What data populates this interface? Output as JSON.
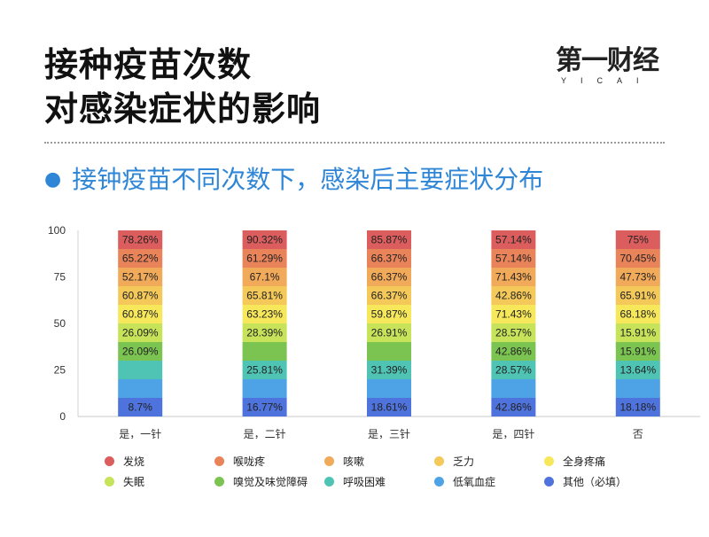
{
  "title": {
    "line1": "接种疫苗次数",
    "line2": "对感染症状的影响"
  },
  "logo": {
    "cn": "第一财经",
    "en": "YICAI"
  },
  "subtitle": "接钟疫苗不同次数下，感染后主要症状分布",
  "chart_data": {
    "type": "bar",
    "stacked": true,
    "categories": [
      "是，一针",
      "是，二针",
      "是，三针",
      "是，四针",
      "否"
    ],
    "ylim": [
      0,
      100
    ],
    "yticks": [
      0,
      25,
      50,
      75,
      100
    ],
    "legend_position": "bottom",
    "series": [
      {
        "name": "其他（必填）",
        "color": "#4f73dc",
        "labels": [
          "8.7%",
          "16.77%",
          "18.61%",
          "42.86%",
          "18.18%"
        ]
      },
      {
        "name": "低氧血症",
        "color": "#4ea3e6",
        "labels": [
          "",
          "",
          "",
          "",
          ""
        ]
      },
      {
        "name": "呼吸困难",
        "color": "#4fc4b4",
        "labels": [
          "",
          "25.81%",
          "31.39%",
          "28.57%",
          "13.64%"
        ]
      },
      {
        "name": "嗅觉及味觉障碍",
        "color": "#7bc452",
        "labels": [
          "26.09%",
          "",
          "",
          "42.86%",
          "15.91%"
        ]
      },
      {
        "name": "失眠",
        "color": "#c6e35a",
        "labels": [
          "26.09%",
          "28.39%",
          "26.91%",
          "28.57%",
          "15.91%"
        ]
      },
      {
        "name": "全身疼痛",
        "color": "#f6e85a",
        "labels": [
          "60.87%",
          "63.23%",
          "59.87%",
          "71.43%",
          "68.18%"
        ]
      },
      {
        "name": "乏力",
        "color": "#f4c95a",
        "labels": [
          "60.87%",
          "65.81%",
          "66.37%",
          "42.86%",
          "65.91%"
        ]
      },
      {
        "name": "咳嗽",
        "color": "#f1a95a",
        "labels": [
          "52.17%",
          "67.1%",
          "66.37%",
          "71.43%",
          "47.73%"
        ]
      },
      {
        "name": "喉咙疼",
        "color": "#e9835a",
        "labels": [
          "65.22%",
          "61.29%",
          "66.37%",
          "57.14%",
          "70.45%"
        ]
      },
      {
        "name": "发烧",
        "color": "#dc5d5d",
        "labels": [
          "78.26%",
          "90.32%",
          "85.87%",
          "57.14%",
          "75%"
        ]
      }
    ]
  },
  "legend": [
    {
      "label": "发烧",
      "color": "#dc5d5d"
    },
    {
      "label": "喉咙疼",
      "color": "#e9835a"
    },
    {
      "label": "咳嗽",
      "color": "#f1a95a"
    },
    {
      "label": "乏力",
      "color": "#f4c95a"
    },
    {
      "label": "全身疼痛",
      "color": "#f6e85a"
    },
    {
      "label": "失眠",
      "color": "#c6e35a"
    },
    {
      "label": "嗅觉及味觉障碍",
      "color": "#7bc452"
    },
    {
      "label": "呼吸困难",
      "color": "#4fc4b4"
    },
    {
      "label": "低氧血症",
      "color": "#4ea3e6"
    },
    {
      "label": "其他（必填）",
      "color": "#4f73dc"
    }
  ]
}
